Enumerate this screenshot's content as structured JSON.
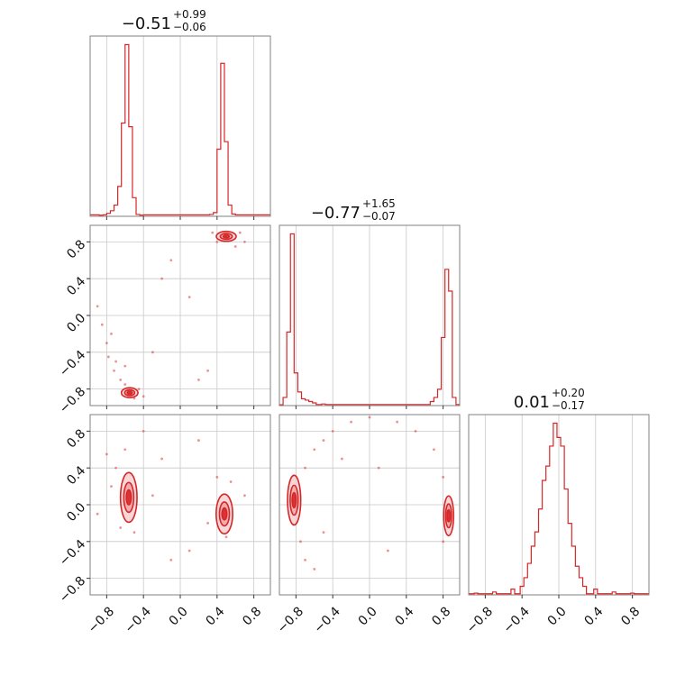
{
  "chart_data": {
    "type": "corner",
    "color": "#d62728",
    "ticks": [
      "−0.8",
      "−0.4",
      "0.0",
      "0.4",
      "0.8"
    ],
    "tick_values": [
      -0.8,
      -0.4,
      0.0,
      0.4,
      0.8
    ],
    "range": [
      -0.98,
      0.98
    ],
    "grid": true,
    "titles": [
      {
        "main": "−0.51",
        "sup": "+0.99",
        "sub": "−0.06"
      },
      {
        "main": "−0.77",
        "sup": "+1.65",
        "sub": "−0.07"
      },
      {
        "main": "0.01",
        "sup": "+0.20",
        "sub": "−0.17"
      }
    ],
    "histograms": [
      {
        "bin_width": 0.04,
        "bins": [
          {
            "x": -0.86,
            "y": 0.3
          },
          {
            "x": -0.82,
            "y": 0.4
          },
          {
            "x": -0.78,
            "y": 0.8
          },
          {
            "x": -0.74,
            "y": 1.5
          },
          {
            "x": -0.7,
            "y": 3.0
          },
          {
            "x": -0.66,
            "y": 8.0
          },
          {
            "x": -0.62,
            "y": 25.0
          },
          {
            "x": -0.58,
            "y": 46.0
          },
          {
            "x": -0.54,
            "y": 24.0
          },
          {
            "x": -0.5,
            "y": 5.0
          },
          {
            "x": -0.46,
            "y": 0.5
          },
          {
            "x": -0.42,
            "y": 0.3
          },
          {
            "x": 0.34,
            "y": 0.5
          },
          {
            "x": 0.38,
            "y": 1.0
          },
          {
            "x": 0.42,
            "y": 18.0
          },
          {
            "x": 0.46,
            "y": 41.0
          },
          {
            "x": 0.5,
            "y": 20.0
          },
          {
            "x": 0.54,
            "y": 3.0
          },
          {
            "x": 0.58,
            "y": 0.6
          }
        ]
      },
      {
        "bin_width": 0.04,
        "bins": [
          {
            "x": -0.96,
            "y": 0.3
          },
          {
            "x": -0.92,
            "y": 3.0
          },
          {
            "x": -0.88,
            "y": 27.0
          },
          {
            "x": -0.84,
            "y": 63.0
          },
          {
            "x": -0.8,
            "y": 12.0
          },
          {
            "x": -0.76,
            "y": 5.0
          },
          {
            "x": -0.72,
            "y": 2.5
          },
          {
            "x": -0.68,
            "y": 2.0
          },
          {
            "x": -0.64,
            "y": 1.5
          },
          {
            "x": -0.6,
            "y": 1.0
          },
          {
            "x": -0.5,
            "y": 0.6
          },
          {
            "x": 0.0,
            "y": 0.4
          },
          {
            "x": 0.5,
            "y": 0.4
          },
          {
            "x": 0.68,
            "y": 1.5
          },
          {
            "x": 0.72,
            "y": 3.0
          },
          {
            "x": 0.76,
            "y": 6.0
          },
          {
            "x": 0.8,
            "y": 25.0
          },
          {
            "x": 0.84,
            "y": 50.0
          },
          {
            "x": 0.88,
            "y": 42.0
          },
          {
            "x": 0.92,
            "y": 3.0
          }
        ]
      },
      {
        "bin_width": 0.04,
        "bins": [
          {
            "x": -0.9,
            "y": 0.6
          },
          {
            "x": -0.7,
            "y": 1.0
          },
          {
            "x": -0.5,
            "y": 2.0
          },
          {
            "x": -0.4,
            "y": 3.0
          },
          {
            "x": -0.36,
            "y": 6.0
          },
          {
            "x": -0.32,
            "y": 11.0
          },
          {
            "x": -0.28,
            "y": 17.0
          },
          {
            "x": -0.24,
            "y": 22.0
          },
          {
            "x": -0.2,
            "y": 30.0
          },
          {
            "x": -0.16,
            "y": 40.0
          },
          {
            "x": -0.12,
            "y": 45.0
          },
          {
            "x": -0.08,
            "y": 52.0
          },
          {
            "x": -0.04,
            "y": 60.0
          },
          {
            "x": 0.0,
            "y": 55.0
          },
          {
            "x": 0.04,
            "y": 52.0
          },
          {
            "x": 0.08,
            "y": 37.0
          },
          {
            "x": 0.12,
            "y": 25.0
          },
          {
            "x": 0.16,
            "y": 17.0
          },
          {
            "x": 0.2,
            "y": 10.0
          },
          {
            "x": 0.24,
            "y": 6.0
          },
          {
            "x": 0.28,
            "y": 3.0
          },
          {
            "x": 0.4,
            "y": 2.0
          },
          {
            "x": 0.6,
            "y": 1.0
          },
          {
            "x": 0.8,
            "y": 0.6
          }
        ]
      }
    ],
    "scatter_panels": [
      {
        "row": 1,
        "col": 0,
        "modes": [
          {
            "cx": -0.55,
            "cy": -0.84,
            "sx": 0.05,
            "sy": 0.03,
            "levels": [
              1.0,
              0.6,
              0.3
            ]
          },
          {
            "cx": 0.5,
            "cy": 0.86,
            "sx": 0.06,
            "sy": 0.03,
            "levels": [
              1.0,
              0.6,
              0.3
            ]
          }
        ],
        "points": [
          {
            "x": -0.8,
            "y": -0.3
          },
          {
            "x": -0.78,
            "y": -0.45
          },
          {
            "x": -0.72,
            "y": -0.6
          },
          {
            "x": -0.7,
            "y": -0.5
          },
          {
            "x": -0.65,
            "y": -0.7
          },
          {
            "x": -0.6,
            "y": -0.75
          },
          {
            "x": -0.85,
            "y": -0.1
          },
          {
            "x": -0.9,
            "y": 0.1
          },
          {
            "x": -0.75,
            "y": -0.2
          },
          {
            "x": -0.5,
            "y": -0.9
          },
          {
            "x": -0.4,
            "y": -0.88
          },
          {
            "x": -0.45,
            "y": -0.8
          },
          {
            "x": 0.4,
            "y": 0.8
          },
          {
            "x": 0.6,
            "y": 0.75
          },
          {
            "x": 0.7,
            "y": 0.8
          },
          {
            "x": 0.35,
            "y": 0.9
          },
          {
            "x": 0.65,
            "y": 0.9
          },
          {
            "x": -0.2,
            "y": 0.4
          },
          {
            "x": 0.1,
            "y": 0.2
          },
          {
            "x": -0.3,
            "y": -0.4
          },
          {
            "x": 0.2,
            "y": -0.7
          },
          {
            "x": -0.1,
            "y": 0.6
          },
          {
            "x": 0.3,
            "y": -0.6
          },
          {
            "x": -0.6,
            "y": -0.55
          }
        ]
      },
      {
        "row": 2,
        "col": 0,
        "modes": [
          {
            "cx": -0.56,
            "cy": 0.08,
            "sx": 0.05,
            "sy": 0.15,
            "levels": [
              1.0,
              0.6,
              0.3
            ]
          },
          {
            "cx": 0.48,
            "cy": -0.1,
            "sx": 0.05,
            "sy": 0.12,
            "levels": [
              1.0,
              0.6,
              0.3
            ]
          }
        ],
        "points": [
          {
            "x": -0.7,
            "y": 0.4
          },
          {
            "x": -0.8,
            "y": 0.55
          },
          {
            "x": -0.6,
            "y": 0.6
          },
          {
            "x": -0.5,
            "y": -0.3
          },
          {
            "x": -0.65,
            "y": -0.25
          },
          {
            "x": -0.75,
            "y": 0.2
          },
          {
            "x": 0.5,
            "y": -0.35
          },
          {
            "x": 0.4,
            "y": 0.3
          },
          {
            "x": 0.55,
            "y": 0.25
          },
          {
            "x": -0.2,
            "y": 0.5
          },
          {
            "x": 0.1,
            "y": -0.5
          },
          {
            "x": -0.1,
            "y": -0.6
          },
          {
            "x": 0.2,
            "y": 0.7
          },
          {
            "x": -0.4,
            "y": 0.8
          },
          {
            "x": -0.9,
            "y": -0.1
          },
          {
            "x": 0.7,
            "y": 0.1
          },
          {
            "x": 0.3,
            "y": -0.2
          },
          {
            "x": -0.3,
            "y": 0.1
          }
        ]
      },
      {
        "row": 2,
        "col": 1,
        "modes": [
          {
            "cx": -0.82,
            "cy": 0.05,
            "sx": 0.04,
            "sy": 0.15,
            "levels": [
              1.0,
              0.6,
              0.3
            ]
          },
          {
            "cx": 0.86,
            "cy": -0.12,
            "sx": 0.03,
            "sy": 0.12,
            "levels": [
              1.0,
              0.6,
              0.3
            ]
          }
        ],
        "points": [
          {
            "x": -0.7,
            "y": 0.4
          },
          {
            "x": -0.6,
            "y": 0.6
          },
          {
            "x": -0.5,
            "y": 0.7
          },
          {
            "x": -0.4,
            "y": 0.8
          },
          {
            "x": -0.2,
            "y": 0.9
          },
          {
            "x": 0.0,
            "y": 0.95
          },
          {
            "x": 0.3,
            "y": 0.9
          },
          {
            "x": 0.5,
            "y": 0.8
          },
          {
            "x": 0.7,
            "y": 0.6
          },
          {
            "x": 0.8,
            "y": 0.3
          },
          {
            "x": -0.75,
            "y": -0.4
          },
          {
            "x": -0.7,
            "y": -0.6
          },
          {
            "x": -0.6,
            "y": -0.7
          },
          {
            "x": 0.8,
            "y": -0.4
          },
          {
            "x": -0.5,
            "y": -0.3
          },
          {
            "x": -0.3,
            "y": 0.5
          },
          {
            "x": 0.2,
            "y": -0.5
          },
          {
            "x": 0.1,
            "y": 0.4
          }
        ]
      }
    ]
  }
}
